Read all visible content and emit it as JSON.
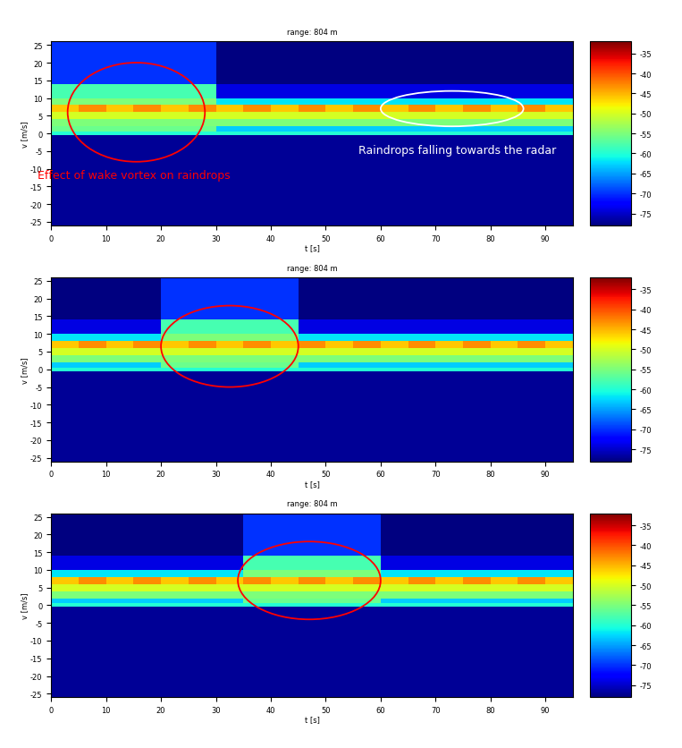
{
  "chart_data": [
    {
      "type": "heatmap",
      "title": "range: 804 m",
      "x_label": "t [s]",
      "y_label": "v [m/s]",
      "color": "jet",
      "xlim": [
        0,
        95
      ],
      "ylim": [
        -26,
        26
      ],
      "xticks": [
        0,
        10,
        20,
        30,
        40,
        50,
        60,
        70,
        80,
        90
      ],
      "yticks": [
        -25,
        -20,
        -15,
        -10,
        -5,
        0,
        5,
        10,
        15,
        20,
        25
      ],
      "t_edges": [
        0,
        5,
        10,
        15,
        20,
        25,
        30,
        35,
        40,
        45,
        50,
        55,
        60,
        65,
        70,
        75,
        80,
        85,
        90,
        95
      ],
      "v_edges": [
        -26,
        -0.5,
        0.5,
        2,
        4,
        6,
        8,
        10,
        14,
        26
      ],
      "cells": [
        [
          -77,
          -77,
          -77,
          -77,
          -77,
          -77,
          -77,
          -77,
          -77,
          -77,
          -77,
          -77,
          -77,
          -77,
          -77,
          -77,
          -77,
          -77,
          -77
        ],
        [
          -60,
          -60,
          -60,
          -60,
          -60,
          -60,
          -60,
          -60,
          -60,
          -60,
          -60,
          -60,
          -60,
          -60,
          -60,
          -60,
          -60,
          -60,
          -60
        ],
        [
          -56,
          -56,
          -56,
          -56,
          -56,
          -56,
          -63,
          -63,
          -63,
          -63,
          -63,
          -63,
          -63,
          -63,
          -63,
          -63,
          -63,
          -63,
          -63
        ],
        [
          -55,
          -55,
          -55,
          -55,
          -55,
          -55,
          -55,
          -55,
          -55,
          -55,
          -55,
          -55,
          -55,
          -55,
          -55,
          -55,
          -55,
          -55,
          -55
        ],
        [
          -50,
          -50,
          -50,
          -50,
          -50,
          -50,
          -50,
          -50,
          -50,
          -50,
          -50,
          -50,
          -50,
          -50,
          -50,
          -50,
          -50,
          -50,
          -50
        ],
        [
          -46,
          -43,
          -46,
          -43,
          -46,
          -43,
          -46,
          -43,
          -46,
          -43,
          -46,
          -43,
          -46,
          -43,
          -46,
          -43,
          -46,
          -43,
          -46
        ],
        [
          -55,
          -55,
          -55,
          -55,
          -55,
          -55,
          -62,
          -62,
          -62,
          -62,
          -62,
          -62,
          -62,
          -62,
          -62,
          -62,
          -62,
          -62,
          -62
        ],
        [
          -58,
          -58,
          -58,
          -58,
          -58,
          -58,
          -74,
          -74,
          -74,
          -74,
          -74,
          -74,
          -74,
          -74,
          -74,
          -74,
          -74,
          -74,
          -74
        ],
        [
          -70,
          -70,
          -70,
          -70,
          -70,
          -70,
          -78,
          -78,
          -78,
          -78,
          -78,
          -78,
          -78,
          -78,
          -78,
          -78,
          -78,
          -78,
          -78
        ]
      ],
      "colorbar": {
        "range": [
          -78,
          -32
        ],
        "ticks": [
          -35,
          -40,
          -45,
          -50,
          -55,
          -60,
          -65,
          -70,
          -75
        ]
      },
      "annotations": [
        {
          "text": "Effect of wake vortex on raindrops",
          "x": 15,
          "y": -10,
          "color": "red"
        },
        {
          "text": "Raindrops falling towards the radar",
          "x": 74,
          "y": -3,
          "color": "white"
        }
      ],
      "regions": [
        {
          "t": [
            3,
            28
          ],
          "v": [
            -8,
            20
          ],
          "color": "red"
        },
        {
          "t": [
            60,
            86
          ],
          "v": [
            2,
            12
          ],
          "color": "white"
        }
      ]
    },
    {
      "type": "heatmap",
      "title": "range: 804 m",
      "x_label": "t [s]",
      "y_label": "v [m/s]",
      "color": "jet",
      "xlim": [
        0,
        95
      ],
      "ylim": [
        -26,
        26
      ],
      "xticks": [
        0,
        10,
        20,
        30,
        40,
        50,
        60,
        70,
        80,
        90
      ],
      "yticks": [
        -25,
        -20,
        -15,
        -10,
        -5,
        0,
        5,
        10,
        15,
        20,
        25
      ],
      "t_edges": [
        0,
        5,
        10,
        15,
        20,
        25,
        30,
        35,
        40,
        45,
        50,
        55,
        60,
        65,
        70,
        75,
        80,
        85,
        90,
        95
      ],
      "v_edges": [
        -26,
        -0.5,
        0.5,
        2,
        4,
        6,
        8,
        10,
        14,
        26
      ],
      "cells": [
        [
          -77,
          -77,
          -77,
          -77,
          -77,
          -77,
          -77,
          -77,
          -77,
          -77,
          -77,
          -77,
          -77,
          -77,
          -77,
          -77,
          -77,
          -77,
          -77
        ],
        [
          -60,
          -60,
          -60,
          -60,
          -60,
          -60,
          -60,
          -60,
          -60,
          -60,
          -60,
          -60,
          -60,
          -60,
          -60,
          -60,
          -60,
          -60,
          -60
        ],
        [
          -63,
          -63,
          -63,
          -63,
          -56,
          -56,
          -56,
          -56,
          -56,
          -63,
          -63,
          -63,
          -63,
          -63,
          -63,
          -63,
          -63,
          -63,
          -63
        ],
        [
          -55,
          -55,
          -55,
          -55,
          -55,
          -55,
          -55,
          -55,
          -55,
          -55,
          -55,
          -55,
          -55,
          -55,
          -55,
          -55,
          -55,
          -55,
          -55
        ],
        [
          -50,
          -50,
          -50,
          -50,
          -50,
          -50,
          -50,
          -50,
          -50,
          -50,
          -50,
          -50,
          -50,
          -50,
          -50,
          -50,
          -50,
          -50,
          -50
        ],
        [
          -46,
          -43,
          -46,
          -43,
          -46,
          -43,
          -46,
          -43,
          -46,
          -43,
          -46,
          -43,
          -46,
          -43,
          -46,
          -43,
          -46,
          -43,
          -46
        ],
        [
          -62,
          -62,
          -62,
          -62,
          -55,
          -55,
          -55,
          -55,
          -55,
          -62,
          -62,
          -62,
          -62,
          -62,
          -62,
          -62,
          -62,
          -62,
          -62
        ],
        [
          -74,
          -74,
          -74,
          -74,
          -58,
          -58,
          -58,
          -58,
          -58,
          -74,
          -74,
          -74,
          -74,
          -74,
          -74,
          -74,
          -74,
          -74,
          -74
        ],
        [
          -78,
          -78,
          -78,
          -78,
          -70,
          -70,
          -70,
          -70,
          -70,
          -78,
          -78,
          -78,
          -78,
          -78,
          -78,
          -78,
          -78,
          -78,
          -78
        ]
      ],
      "colorbar": {
        "range": [
          -78,
          -32
        ],
        "ticks": [
          -35,
          -40,
          -45,
          -50,
          -55,
          -60,
          -65,
          -70,
          -75
        ]
      },
      "annotations": [],
      "regions": [
        {
          "t": [
            20,
            45
          ],
          "v": [
            -5,
            18
          ],
          "color": "red"
        }
      ]
    },
    {
      "type": "heatmap",
      "title": "range: 804 m",
      "x_label": "t [s]",
      "y_label": "v [m/s]",
      "color": "jet",
      "xlim": [
        0,
        95
      ],
      "ylim": [
        -26,
        26
      ],
      "xticks": [
        0,
        10,
        20,
        30,
        40,
        50,
        60,
        70,
        80,
        90
      ],
      "yticks": [
        -25,
        -20,
        -15,
        -10,
        -5,
        0,
        5,
        10,
        15,
        20,
        25
      ],
      "t_edges": [
        0,
        5,
        10,
        15,
        20,
        25,
        30,
        35,
        40,
        45,
        50,
        55,
        60,
        65,
        70,
        75,
        80,
        85,
        90,
        95
      ],
      "v_edges": [
        -26,
        -0.5,
        0.5,
        2,
        4,
        6,
        8,
        10,
        14,
        26
      ],
      "cells": [
        [
          -77,
          -77,
          -77,
          -77,
          -77,
          -77,
          -77,
          -77,
          -77,
          -77,
          -77,
          -77,
          -77,
          -77,
          -77,
          -77,
          -77,
          -77,
          -77
        ],
        [
          -60,
          -60,
          -60,
          -60,
          -60,
          -60,
          -60,
          -60,
          -60,
          -60,
          -60,
          -60,
          -60,
          -60,
          -60,
          -60,
          -60,
          -60,
          -60
        ],
        [
          -63,
          -63,
          -63,
          -63,
          -63,
          -63,
          -63,
          -56,
          -56,
          -56,
          -56,
          -56,
          -63,
          -63,
          -63,
          -63,
          -63,
          -63,
          -63
        ],
        [
          -55,
          -55,
          -55,
          -55,
          -55,
          -55,
          -55,
          -55,
          -55,
          -55,
          -55,
          -55,
          -55,
          -55,
          -55,
          -55,
          -55,
          -55,
          -55
        ],
        [
          -50,
          -50,
          -50,
          -50,
          -50,
          -50,
          -50,
          -50,
          -50,
          -50,
          -50,
          -50,
          -50,
          -50,
          -50,
          -50,
          -50,
          -50,
          -50
        ],
        [
          -46,
          -43,
          -46,
          -43,
          -46,
          -43,
          -46,
          -43,
          -46,
          -43,
          -46,
          -43,
          -46,
          -43,
          -46,
          -43,
          -46,
          -43,
          -46
        ],
        [
          -62,
          -62,
          -62,
          -62,
          -62,
          -62,
          -62,
          -55,
          -55,
          -55,
          -55,
          -55,
          -62,
          -62,
          -62,
          -62,
          -62,
          -62,
          -62
        ],
        [
          -74,
          -74,
          -74,
          -74,
          -74,
          -74,
          -74,
          -58,
          -58,
          -58,
          -58,
          -58,
          -74,
          -74,
          -74,
          -74,
          -74,
          -74,
          -74
        ],
        [
          -78,
          -78,
          -78,
          -78,
          -78,
          -78,
          -78,
          -70,
          -70,
          -70,
          -70,
          -70,
          -78,
          -78,
          -78,
          -78,
          -78,
          -78,
          -78
        ]
      ],
      "colorbar": {
        "range": [
          -78,
          -32
        ],
        "ticks": [
          -35,
          -40,
          -45,
          -50,
          -55,
          -60,
          -65,
          -70,
          -75
        ]
      },
      "annotations": [],
      "regions": [
        {
          "t": [
            34,
            60
          ],
          "v": [
            -4,
            18
          ],
          "color": "red"
        }
      ]
    }
  ]
}
